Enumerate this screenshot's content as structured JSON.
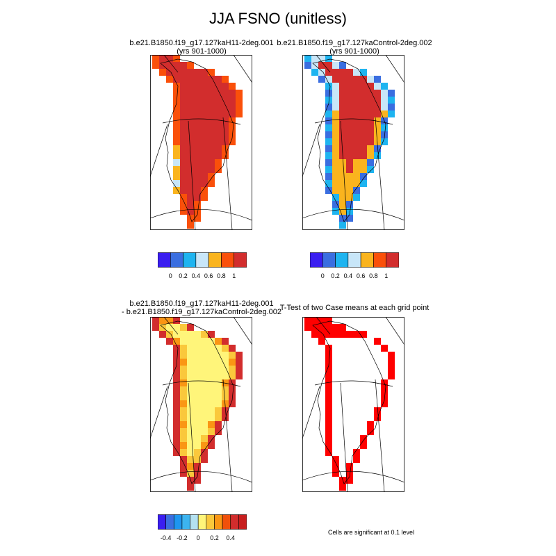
{
  "figure": {
    "title": "JJA FSNO (unitless)",
    "footnote": "Cells are significant at 0.1 level"
  },
  "panels": {
    "top_left": {
      "title_line1": "b.e21.B1850.f19_g17.127kaH11-2deg.001",
      "title_line2": "(yrs 901-1000)"
    },
    "top_right": {
      "title_line1": "b.e21.B1850.f19_g17.127kaControl-2deg.002",
      "title_line2": "(yrs 901-1000)"
    },
    "bottom_left": {
      "title_line1": "b.e21.B1850.f19_g17.127kaH11-2deg.001",
      "title_line2": "- b.e21.B1850.f19_g17.127kaControl-2deg.002"
    },
    "bottom_right": {
      "title_line1": "T-Test of two Case means at each grid point"
    }
  },
  "colorbars": {
    "top": {
      "colors": [
        "#3a1ef0",
        "#3a6ee0",
        "#1eb4f0",
        "#c8e6f8",
        "#fab41e",
        "#fa500a",
        "#d22d2d"
      ],
      "labels": [
        "0",
        "0.2",
        "0.4",
        "0.6",
        "0.8",
        "1"
      ]
    },
    "bottom": {
      "colors": [
        "#3a1ef0",
        "#3a6ee0",
        "#1e96f0",
        "#3cb4f0",
        "#b4e1f0",
        "#fff57a",
        "#fac83c",
        "#fa9614",
        "#f0500a",
        "#d22d2d",
        "#c81e1e"
      ],
      "labels": [
        "-0.4",
        "-0.2",
        "0",
        "0.2",
        "0.4"
      ]
    }
  },
  "chart_data": [
    {
      "type": "heatmap",
      "title": "b.e21.B1850.f19_g17.127kaH11-2deg.001 (yrs 901-1000)",
      "region": "Greenland",
      "levels": [
        0,
        0.2,
        0.4,
        0.6,
        0.8,
        1
      ],
      "range": [
        0,
        1
      ],
      "description": "Snow fraction near 1 over most of the ice sheet interior, 0.8-0.9 at margins, scattered 0.4-0.7 cells along the west coast"
    },
    {
      "type": "heatmap",
      "title": "b.e21.B1850.f19_g17.127kaControl-2deg.002 (yrs 901-1000)",
      "region": "Greenland",
      "levels": [
        0,
        0.2,
        0.4,
        0.6,
        0.8,
        1
      ],
      "range": [
        0,
        1
      ],
      "description": "Snow fraction near 1 in central interior, 0.8 ring, wide 0.2-0.5 margin on west and southeast"
    },
    {
      "type": "heatmap",
      "title": "b.e21.B1850.f19_g17.127kaH11-2deg.001 - b.e21.B1850.f19_g17.127kaControl-2deg.002",
      "region": "Greenland",
      "levels": [
        -0.4,
        -0.2,
        0,
        0.2,
        0.4
      ],
      "range": [
        -0.5,
        0.5
      ],
      "description": "Near-zero to slightly positive (0-0.05) over interior, positive 0.2-0.5 differences around the margins"
    },
    {
      "type": "heatmap",
      "title": "T-Test of two Case means at each grid point",
      "region": "Greenland",
      "description": "Significant cells at 0.1 level form a ring around the Greenland margin"
    }
  ]
}
